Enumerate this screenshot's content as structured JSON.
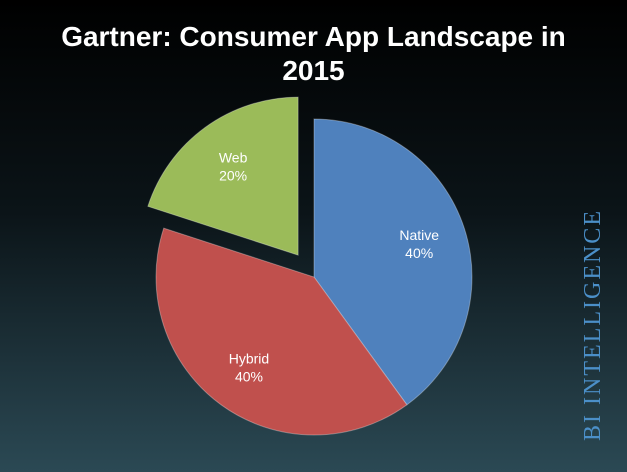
{
  "chart_data": {
    "type": "pie",
    "title": "Gartner: Consumer App Landscape in 2015",
    "categories": [
      "Native",
      "Hybrid",
      "Web"
    ],
    "values": [
      40,
      40,
      20
    ],
    "value_labels": [
      "40%",
      "40%",
      "20%"
    ],
    "colors": [
      "#4f81bd",
      "#c0504d",
      "#9bbb59"
    ],
    "watermark": "BI Intelligence"
  }
}
